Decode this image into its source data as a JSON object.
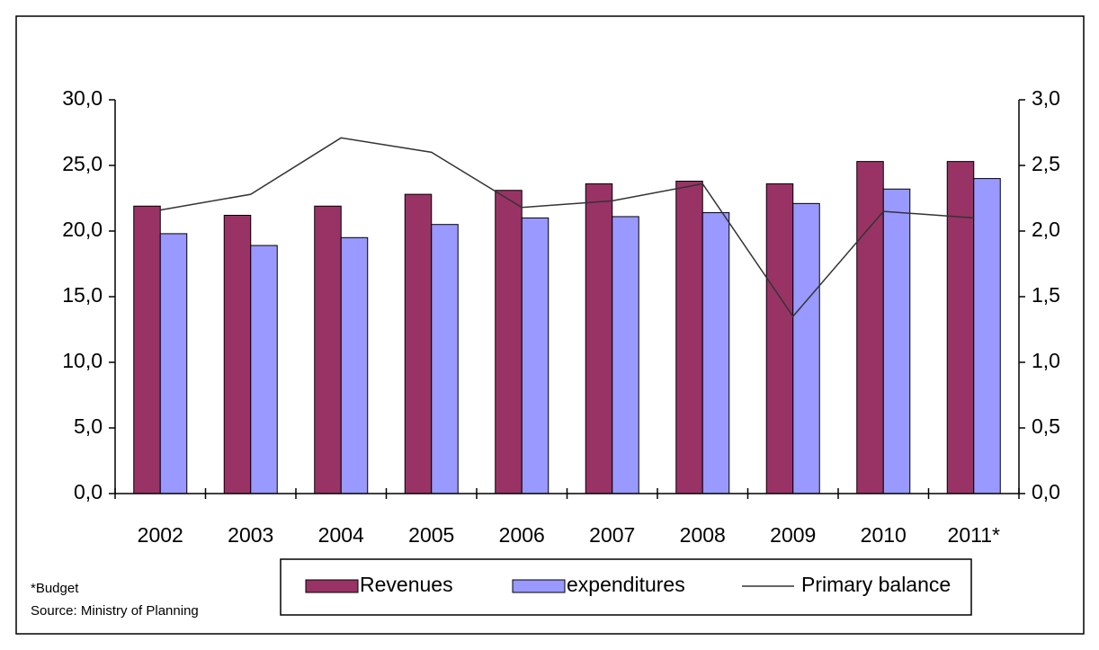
{
  "chart_data": {
    "type": "bar",
    "categories": [
      "2002",
      "2003",
      "2004",
      "2005",
      "2006",
      "2007",
      "2008",
      "2009",
      "2010",
      "2011*"
    ],
    "series": [
      {
        "name": "Revenues",
        "color": "#993366",
        "type": "bar",
        "values": [
          21.9,
          21.2,
          21.9,
          22.8,
          23.1,
          23.6,
          23.8,
          23.6,
          25.3,
          25.3
        ]
      },
      {
        "name": "expenditures",
        "color": "#9999ff",
        "type": "bar",
        "values": [
          19.8,
          18.9,
          19.5,
          20.5,
          21.0,
          21.1,
          21.4,
          22.1,
          23.2,
          24.0
        ]
      },
      {
        "name": "Primary balance",
        "color": "#333333",
        "type": "line",
        "axis": "y2",
        "values": [
          2.16,
          2.28,
          2.71,
          2.6,
          2.18,
          2.23,
          2.36,
          1.35,
          2.15,
          2.1
        ]
      }
    ],
    "ylim": [
      0,
      30
    ],
    "yticks": [
      {
        "value": 0,
        "label": "0,0"
      },
      {
        "value": 5,
        "label": "5,0"
      },
      {
        "value": 10,
        "label": "10,0"
      },
      {
        "value": 15,
        "label": "15,0"
      },
      {
        "value": 20,
        "label": "20,0"
      },
      {
        "value": 25,
        "label": "25,0"
      },
      {
        "value": 30,
        "label": "30,0"
      }
    ],
    "y2lim": [
      0,
      3
    ],
    "y2ticks": [
      {
        "value": 0,
        "label": "0,0"
      },
      {
        "value": 0.5,
        "label": "0,5"
      },
      {
        "value": 1,
        "label": "1,0"
      },
      {
        "value": 1.5,
        "label": "1,5"
      },
      {
        "value": 2,
        "label": "2,0"
      },
      {
        "value": 2.5,
        "label": "2,5"
      },
      {
        "value": 3,
        "label": "3,0"
      }
    ],
    "grid": false,
    "legend": "bottom",
    "notes": [
      "*Budget",
      "Source: Ministry of Planning"
    ]
  }
}
